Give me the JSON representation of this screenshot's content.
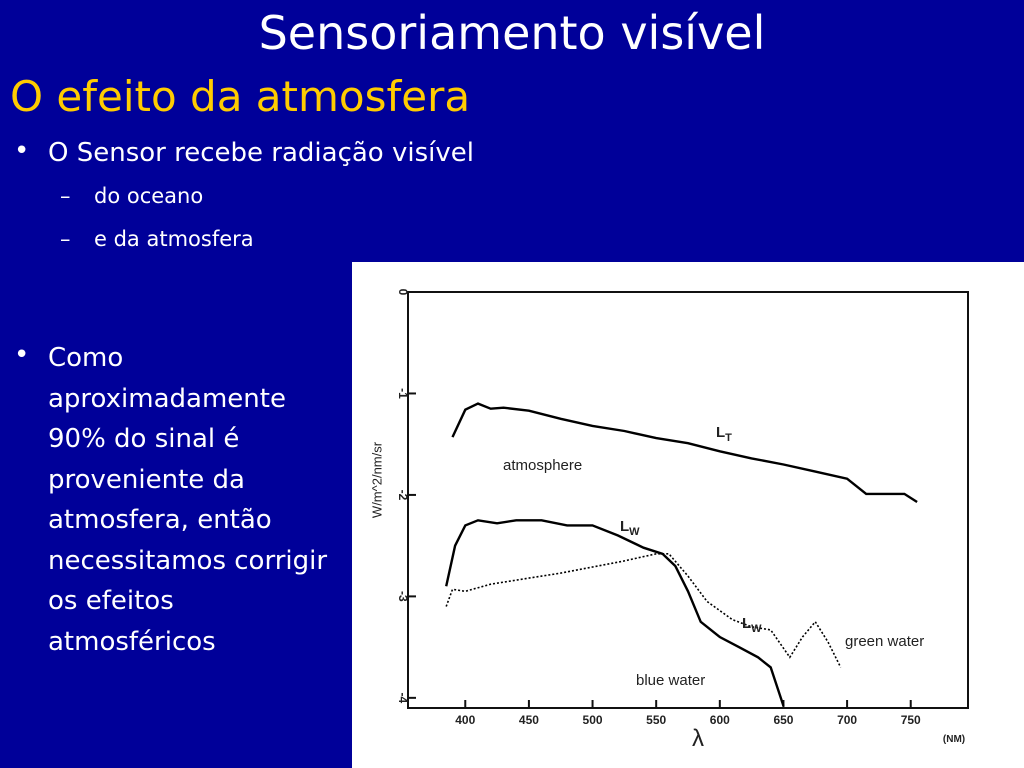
{
  "header": {
    "title": "Sensoriamento visível",
    "subtitle": "O efeito da atmosfera"
  },
  "bullets": [
    {
      "text": "O Sensor recebe radiação visível",
      "sub": [
        "do oceano",
        "e da atmosfera"
      ]
    },
    {
      "text": "Como aproximadamente 90% do sinal é proveniente da atmosfera, então necessitamos corrigir os efeitos atmosféricos"
    }
  ],
  "chart_data": {
    "type": "line",
    "y_label": "W/m^2/nm/sr",
    "x_label": "λ",
    "x_unit": "(NM)",
    "xlim": [
      355,
      795
    ],
    "ylim": [
      -4.1,
      0
    ],
    "xticks": [
      400,
      450,
      500,
      550,
      600,
      650,
      700,
      750
    ],
    "yticks": [
      0,
      -1,
      -2,
      -3,
      -4
    ],
    "series": [
      {
        "name": "atmosphere",
        "label": "L",
        "label_sub": "T",
        "color": "#000000",
        "dash": "solid",
        "x": [
          390,
          400,
          410,
          420,
          430,
          450,
          475,
          500,
          525,
          550,
          575,
          600,
          625,
          650,
          675,
          700,
          715,
          730,
          745,
          755
        ],
        "values": [
          -1.43,
          -1.16,
          -1.1,
          -1.15,
          -1.14,
          -1.17,
          -1.25,
          -1.32,
          -1.37,
          -1.44,
          -1.49,
          -1.57,
          -1.64,
          -1.7,
          -1.77,
          -1.84,
          -1.99,
          -1.99,
          -1.99,
          -2.07
        ]
      },
      {
        "name": "blue water",
        "label": "L",
        "label_sub": "W",
        "color": "#000000",
        "dash": "solid",
        "x": [
          385,
          392,
          400,
          410,
          425,
          440,
          460,
          480,
          500,
          520,
          540,
          555,
          565,
          575,
          585,
          600,
          615,
          630,
          640,
          650
        ],
        "values": [
          -2.9,
          -2.5,
          -2.3,
          -2.25,
          -2.28,
          -2.25,
          -2.25,
          -2.3,
          -2.3,
          -2.4,
          -2.52,
          -2.58,
          -2.7,
          -2.95,
          -3.25,
          -3.4,
          -3.5,
          -3.6,
          -3.7,
          -4.08
        ]
      },
      {
        "name": "green water",
        "label": "L",
        "label_sub": "W",
        "color": "#000000",
        "dash": "dotted",
        "x": [
          385,
          390,
          400,
          420,
          450,
          475,
          500,
          525,
          550,
          560,
          575,
          590,
          610,
          625,
          640,
          655,
          665,
          675,
          685,
          695
        ],
        "values": [
          -3.1,
          -2.93,
          -2.95,
          -2.88,
          -2.82,
          -2.77,
          -2.71,
          -2.65,
          -2.58,
          -2.58,
          -2.8,
          -3.05,
          -3.23,
          -3.3,
          -3.33,
          -3.6,
          -3.4,
          -3.25,
          -3.45,
          -3.7
        ]
      }
    ]
  }
}
